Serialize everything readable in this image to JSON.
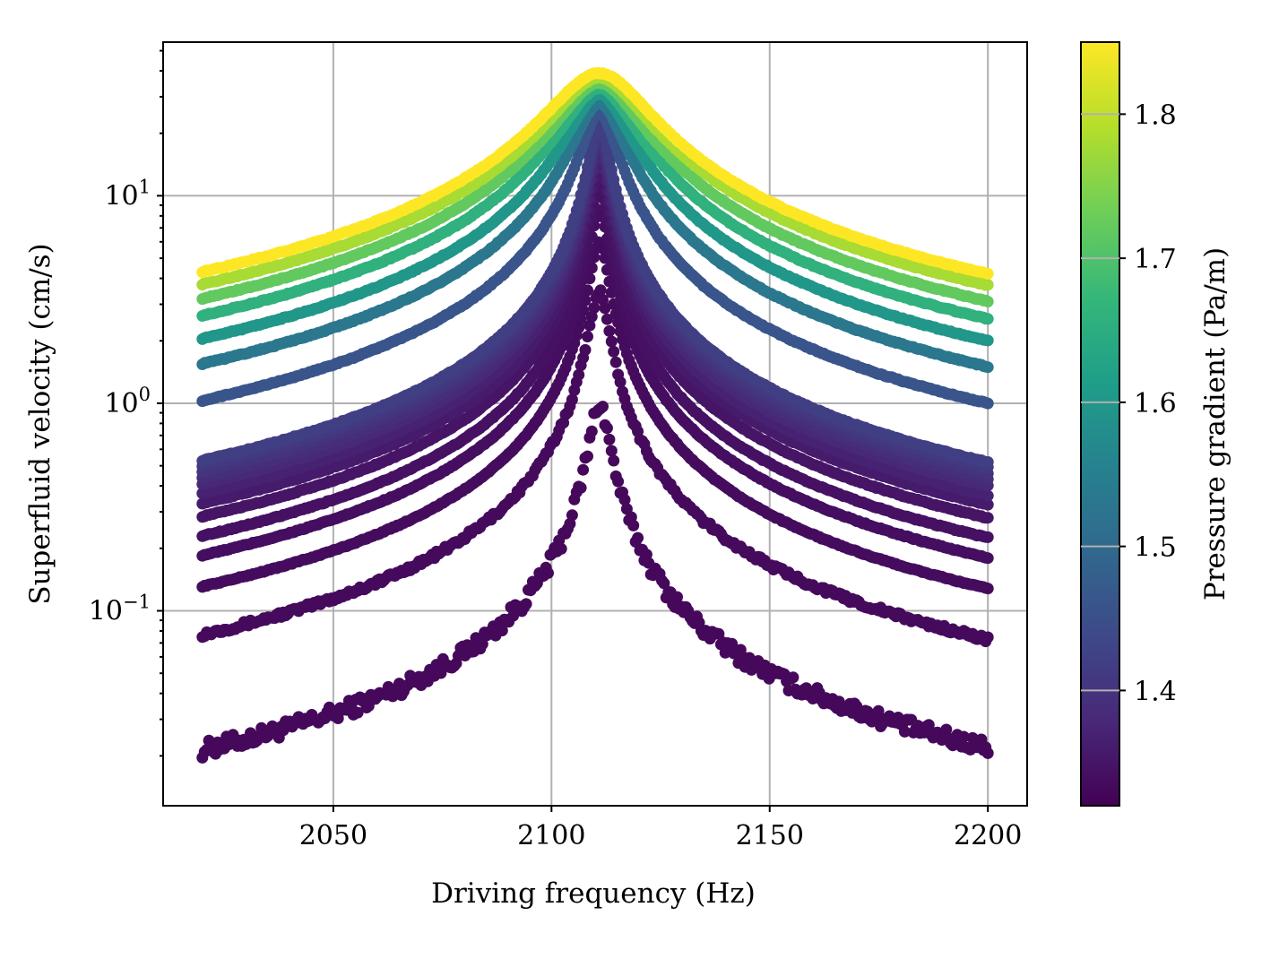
{
  "chart_data": {
    "type": "scatter",
    "xlabel": "Driving frequency (Hz)",
    "ylabel": "Superfluid velocity (cm/s)",
    "xlim": [
      2011,
      2209
    ],
    "ylim": [
      0.0115,
      55
    ],
    "yscale": "log",
    "x_ticks": [
      2050,
      2100,
      2150,
      2200
    ],
    "y_ticks": [
      {
        "value": 0.1,
        "base": "10",
        "exp": "−1"
      },
      {
        "value": 1,
        "base": "10",
        "exp": "0"
      },
      {
        "value": 10,
        "base": "10",
        "exp": "1"
      }
    ],
    "grid": true,
    "marker": "filled-circle",
    "colormap": "viridis",
    "frequency_sweep": {
      "start": 2020,
      "end": 2200
    },
    "colorbar": {
      "label": "Pressure gradient (Pa/m)",
      "range": [
        1.32,
        1.85
      ],
      "ticks": [
        "1.4",
        "1.5",
        "1.6",
        "1.7",
        "1.8"
      ],
      "tick_values": [
        1.4,
        1.5,
        1.6,
        1.7,
        1.8
      ],
      "stops": [
        "#440154",
        "#482878",
        "#3e4989",
        "#31688e",
        "#26828e",
        "#1f9e89",
        "#35b779",
        "#6ece58",
        "#b5de2b",
        "#fde725"
      ]
    },
    "series": [
      {
        "gradient": 1.33,
        "peak_frequency": 2111.0,
        "peak_velocity": 1.0,
        "velocity_at_2020": 0.0215,
        "velocity_at_2200": 0.022
      },
      {
        "gradient": 1.333,
        "peak_frequency": 2111.0,
        "peak_velocity": 3.5,
        "velocity_at_2020": 0.077,
        "velocity_at_2200": 0.073
      },
      {
        "gradient": 1.336,
        "peak_frequency": 2111.0,
        "peak_velocity": 6.0,
        "velocity_at_2020": 0.131,
        "velocity_at_2200": 0.128
      },
      {
        "gradient": 1.34,
        "peak_frequency": 2111.0,
        "peak_velocity": 8.5,
        "velocity_at_2020": 0.185,
        "velocity_at_2200": 0.18
      },
      {
        "gradient": 1.344,
        "peak_frequency": 2111.0,
        "peak_velocity": 10.5,
        "velocity_at_2020": 0.23,
        "velocity_at_2200": 0.225
      },
      {
        "gradient": 1.35,
        "peak_frequency": 2111.0,
        "peak_velocity": 12.5,
        "velocity_at_2020": 0.285,
        "velocity_at_2200": 0.28
      },
      {
        "gradient": 1.36,
        "peak_frequency": 2111.0,
        "peak_velocity": 14.0,
        "velocity_at_2020": 0.33,
        "velocity_at_2200": 0.325
      },
      {
        "gradient": 1.37,
        "peak_frequency": 2111.0,
        "peak_velocity": 15.5,
        "velocity_at_2020": 0.37,
        "velocity_at_2200": 0.36
      },
      {
        "gradient": 1.38,
        "peak_frequency": 2111.0,
        "peak_velocity": 17.0,
        "velocity_at_2020": 0.41,
        "velocity_at_2200": 0.4
      },
      {
        "gradient": 1.39,
        "peak_frequency": 2111.0,
        "peak_velocity": 18.5,
        "velocity_at_2020": 0.44,
        "velocity_at_2200": 0.43
      },
      {
        "gradient": 1.4,
        "peak_frequency": 2111.0,
        "peak_velocity": 20.0,
        "velocity_at_2020": 0.47,
        "velocity_at_2200": 0.46
      },
      {
        "gradient": 1.41,
        "peak_frequency": 2111.0,
        "peak_velocity": 21.0,
        "velocity_at_2020": 0.5,
        "velocity_at_2200": 0.49
      },
      {
        "gradient": 1.42,
        "peak_frequency": 2111.0,
        "peak_velocity": 22.0,
        "velocity_at_2020": 0.53,
        "velocity_at_2200": 0.52
      },
      {
        "gradient": 1.46,
        "peak_frequency": 2111.0,
        "peak_velocity": 25.0,
        "velocity_at_2020": 1.03,
        "velocity_at_2200": 1.0
      },
      {
        "gradient": 1.53,
        "peak_frequency": 2111.0,
        "peak_velocity": 28.0,
        "velocity_at_2020": 1.55,
        "velocity_at_2200": 1.5
      },
      {
        "gradient": 1.6,
        "peak_frequency": 2111.0,
        "peak_velocity": 31.0,
        "velocity_at_2020": 2.05,
        "velocity_at_2200": 2.0
      },
      {
        "gradient": 1.66,
        "peak_frequency": 2111.0,
        "peak_velocity": 33.0,
        "velocity_at_2020": 2.65,
        "velocity_at_2200": 2.55
      },
      {
        "gradient": 1.72,
        "peak_frequency": 2111.0,
        "peak_velocity": 35.0,
        "velocity_at_2020": 3.2,
        "velocity_at_2200": 3.1
      },
      {
        "gradient": 1.78,
        "peak_frequency": 2111.0,
        "peak_velocity": 37.0,
        "velocity_at_2020": 3.75,
        "velocity_at_2200": 3.7
      },
      {
        "gradient": 1.85,
        "peak_frequency": 2111.0,
        "peak_velocity": 39.0,
        "velocity_at_2020": 4.3,
        "velocity_at_2200": 4.2
      }
    ]
  }
}
